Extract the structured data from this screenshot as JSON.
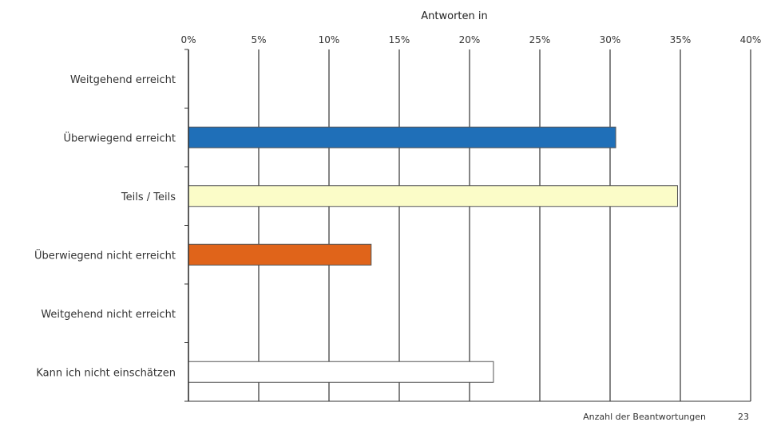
{
  "chart_data": {
    "type": "bar",
    "orientation": "horizontal",
    "title": "",
    "xlabel": "Antworten in",
    "ylabel": "",
    "xlim": [
      0,
      40
    ],
    "x_ticks": [
      "0%",
      "5%",
      "10%",
      "15%",
      "20%",
      "25%",
      "30%",
      "35%",
      "40%"
    ],
    "categories": [
      "Weitgehend erreicht",
      "Überwiegend erreicht",
      "Teils / Teils",
      "Überwiegend nicht erreicht",
      "Weitgehend nicht erreicht",
      "Kann ich nicht einschätzen"
    ],
    "values": [
      0,
      30.4,
      34.8,
      13.0,
      0,
      21.7
    ],
    "colors": [
      "#1f6fb8",
      "#1f6fb8",
      "#fbfcc8",
      "#e0641a",
      "#ffffff",
      "#ffffff"
    ],
    "grid": "vertical",
    "legend": "none"
  },
  "footer": {
    "count_label": "Anzahl der Beantwortungen",
    "count_value": "23"
  }
}
